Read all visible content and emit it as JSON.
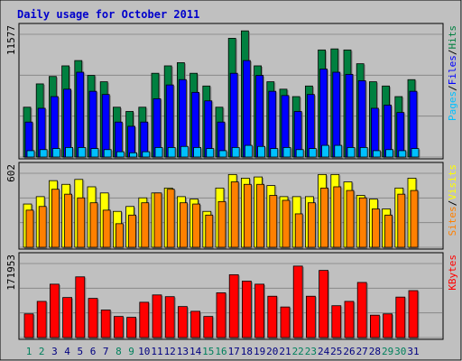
{
  "chart_data": {
    "type": "bar",
    "title": "Daily usage for October 2011",
    "colors": {
      "background": "#c0c0c0",
      "title": "#0000cc",
      "hits": "#008040",
      "files": "#0000ff",
      "pages": "#00c0ff",
      "visits": "#ffff00",
      "sites": "#ff8000",
      "kbytes": "#ff0000",
      "weekend_day": "#00805c",
      "weekday": "#000080"
    },
    "days": [
      "1",
      "2",
      "3",
      "4",
      "5",
      "6",
      "7",
      "8",
      "9",
      "10",
      "11",
      "12",
      "13",
      "14",
      "15",
      "16",
      "17",
      "18",
      "19",
      "20",
      "21",
      "22",
      "23",
      "24",
      "25",
      "26",
      "27",
      "28",
      "29",
      "30",
      "31"
    ],
    "weekend_days": [
      1,
      2,
      8,
      9,
      15,
      16,
      22,
      23,
      29,
      30
    ],
    "panels": [
      {
        "id": "usage",
        "max_label": "11577",
        "ymax": 11577,
        "series": [
          {
            "name": "Hits",
            "values": [
              4700,
              6900,
              7600,
              8600,
              9100,
              7700,
              7100,
              4700,
              4300,
              4700,
              7900,
              8600,
              8900,
              7900,
              6700,
              4700,
              11200,
              11900,
              8600,
              7100,
              6400,
              5700,
              6700,
              10100,
              10200,
              10100,
              8800,
              7100,
              6700,
              5700,
              7300
            ]
          },
          {
            "name": "Files",
            "values": [
              3300,
              4600,
              5700,
              6400,
              8000,
              6200,
              5900,
              3300,
              2900,
              3300,
              5500,
              6800,
              7300,
              6100,
              5300,
              3300,
              7900,
              9100,
              7700,
              6200,
              5800,
              4300,
              5900,
              8300,
              8000,
              7800,
              7200,
              4600,
              4900,
              4200,
              6200
            ]
          },
          {
            "name": "Pages",
            "values": [
              600,
              700,
              800,
              900,
              900,
              800,
              700,
              500,
              400,
              500,
              900,
              900,
              1000,
              900,
              800,
              600,
              900,
              1100,
              1000,
              800,
              900,
              700,
              800,
              1100,
              1100,
              900,
              900,
              600,
              700,
              600,
              800
            ]
          }
        ],
        "legend": [
          {
            "text": "Pages",
            "color": "#00c0ff"
          },
          {
            "text": "/",
            "color": "#000000"
          },
          {
            "text": "Files",
            "color": "#0000ff"
          },
          {
            "text": "/",
            "color": "#000000"
          },
          {
            "text": "Hits",
            "color": "#008040"
          }
        ]
      },
      {
        "id": "visitors",
        "max_label": "602",
        "ymax": 602,
        "series": [
          {
            "name": "Visits",
            "values": [
              352,
              412,
              542,
              512,
              552,
              492,
              442,
              292,
              332,
              402,
              442,
              482,
              412,
              392,
              292,
              482,
              592,
              562,
              572,
              502,
              412,
              412,
              412,
              592,
              592,
              532,
              422,
              392,
              312,
              482,
              562
            ]
          },
          {
            "name": "Sites",
            "values": [
              302,
              332,
              472,
              432,
              402,
              362,
              302,
              192,
              262,
              362,
              442,
              472,
              362,
              352,
              262,
              372,
              532,
              512,
              512,
              422,
              382,
              272,
              362,
              482,
              492,
              462,
              402,
              312,
              262,
              432,
              462
            ]
          }
        ],
        "legend": [
          {
            "text": "Sites",
            "color": "#ff8000"
          },
          {
            "text": "/",
            "color": "#000000"
          },
          {
            "text": "Visits",
            "color": "#ffff00"
          }
        ]
      },
      {
        "id": "kbytes",
        "max_label": "171953",
        "ymax": 171953,
        "series": [
          {
            "name": "KBytes",
            "values": [
              55000,
              84000,
              124000,
              93000,
              141000,
              91000,
              64000,
              49000,
              47000,
              82000,
              99000,
              95000,
              72000,
              61000,
              49000,
              104000,
              146000,
              131000,
              124000,
              96000,
              71000,
              166000,
              96000,
              156000,
              74000,
              84000,
              128000,
              52000,
              55000,
              94000,
              109000
            ]
          }
        ],
        "legend": [
          {
            "text": "KBytes",
            "color": "#ff0000"
          }
        ]
      }
    ]
  }
}
